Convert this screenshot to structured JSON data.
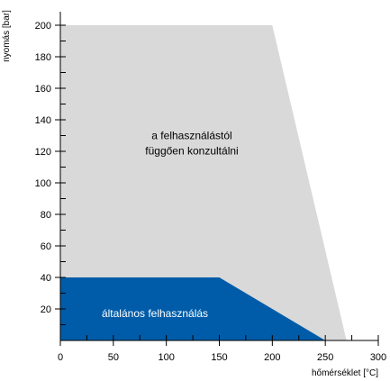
{
  "chart_data": {
    "type": "area",
    "xlabel": "hőmérséklet [°C]",
    "ylabel": "nyomás [bar]",
    "xlim": [
      0,
      300
    ],
    "ylim": [
      0,
      200
    ],
    "x_ticks": [
      0,
      50,
      100,
      150,
      200,
      250,
      300
    ],
    "y_ticks": [
      20,
      40,
      60,
      80,
      100,
      120,
      140,
      160,
      180,
      200
    ],
    "grid": false,
    "regions": [
      {
        "label": "a felhasználástól függően konzultálni",
        "label_lines": [
          "a felhasználástól",
          "függően konzultálni"
        ],
        "color": "#d9d9d9",
        "label_color": "#000000",
        "points": [
          [
            0,
            200
          ],
          [
            200,
            200
          ],
          [
            270,
            0
          ],
          [
            0,
            0
          ]
        ]
      },
      {
        "label": "általános felhasználás",
        "label_lines": [
          "általános felhasználás"
        ],
        "color": "#005ca9",
        "label_color": "#ffffff",
        "points": [
          [
            0,
            40
          ],
          [
            150,
            40
          ],
          [
            250,
            0
          ],
          [
            0,
            0
          ]
        ]
      }
    ]
  }
}
